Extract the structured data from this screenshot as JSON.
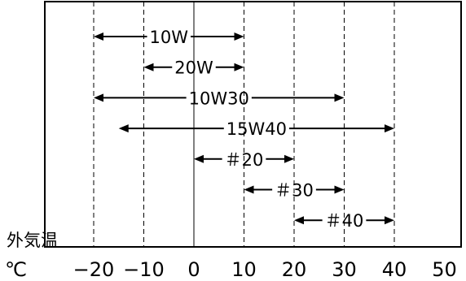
{
  "chart_data": {
    "type": "range",
    "x_unit": "℃",
    "axis_label": "外気温",
    "ticks": [
      -20,
      -10,
      0,
      10,
      20,
      30,
      40,
      50
    ],
    "tick_labels": [
      "−20",
      "−10",
      "0",
      "10",
      "20",
      "30",
      "40",
      "50"
    ],
    "xlim": [
      -30,
      50
    ],
    "grid": "vertical dashed lines at each tick; solid line at 0",
    "ranges": [
      {
        "label": "10W",
        "from": -20,
        "to": 10
      },
      {
        "label": "20W",
        "from": -10,
        "to": 10
      },
      {
        "label": "10W30",
        "from": -20,
        "to": 30
      },
      {
        "label": "15W40",
        "from": -15,
        "to": 40
      },
      {
        "label": "＃20",
        "from": 0,
        "to": 20
      },
      {
        "label": "＃30",
        "from": 10,
        "to": 30
      },
      {
        "label": "＃40",
        "from": 20,
        "to": 40
      }
    ]
  }
}
